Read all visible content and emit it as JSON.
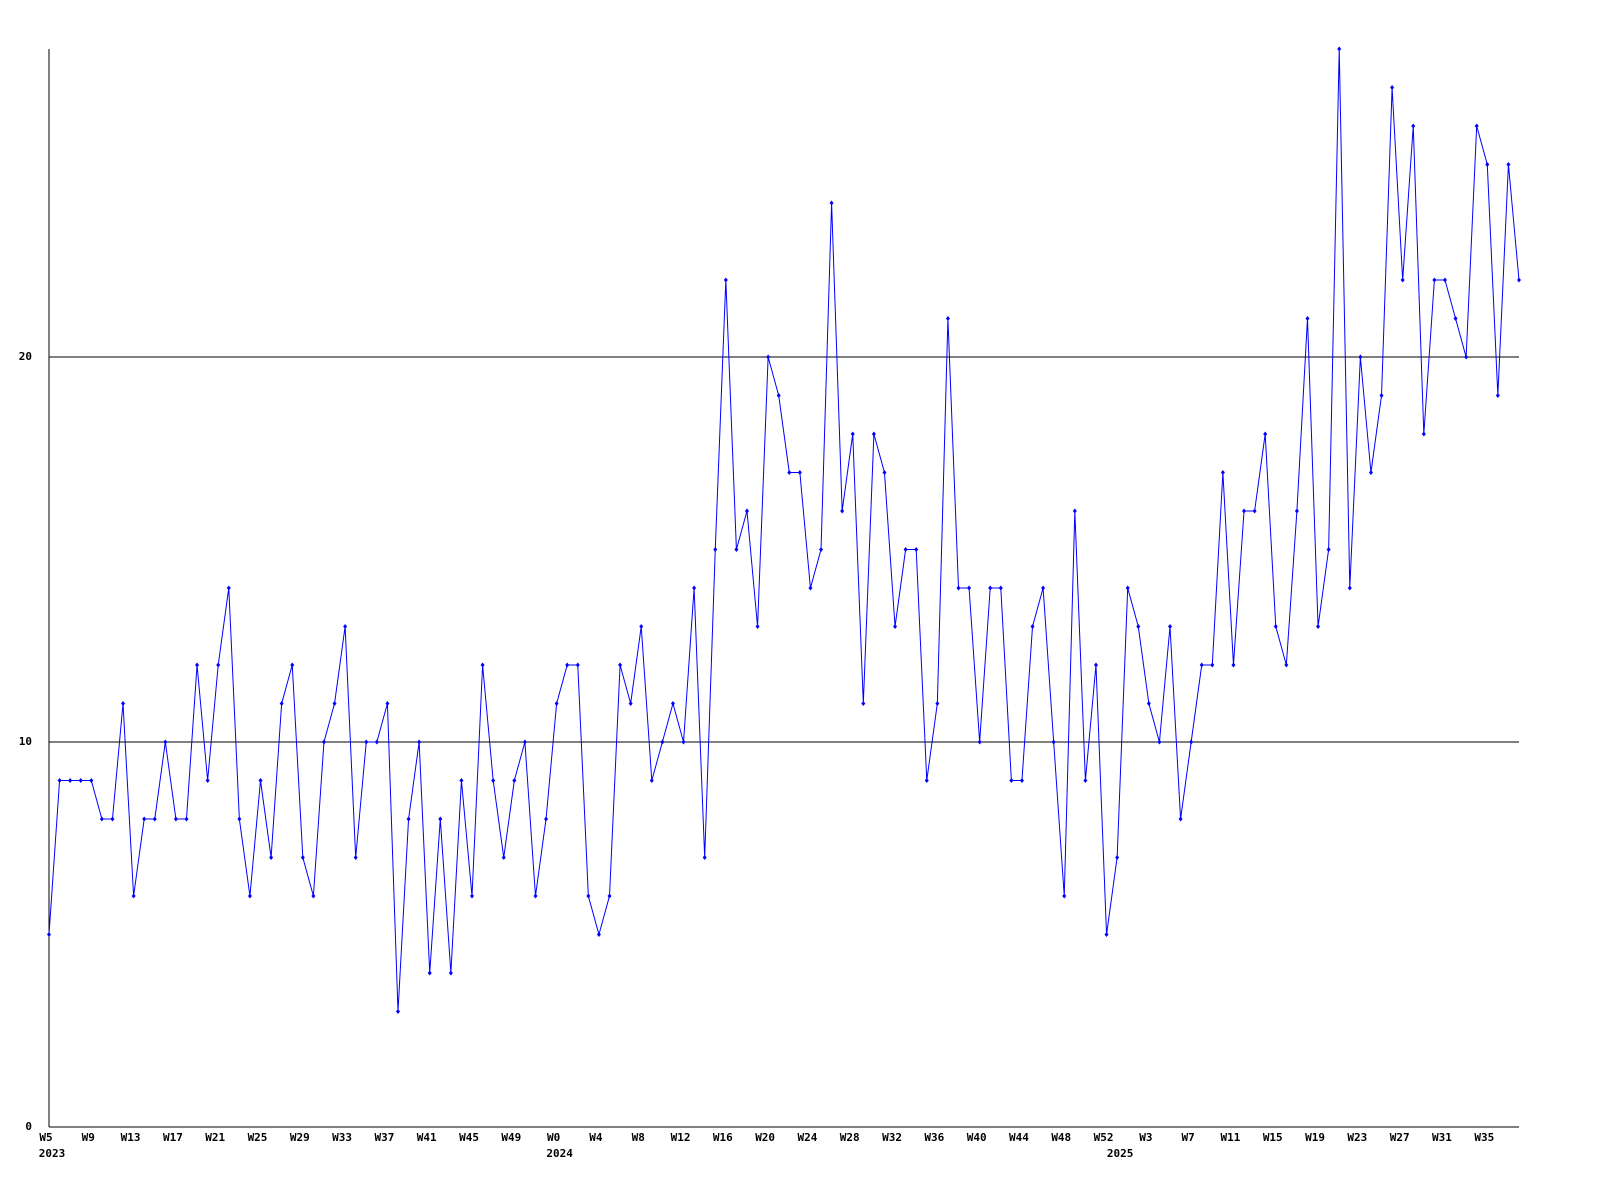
{
  "chart_data": {
    "type": "line",
    "categories": [
      "W5",
      null,
      null,
      null,
      "W9",
      null,
      null,
      null,
      "W13",
      null,
      null,
      null,
      "W17",
      null,
      null,
      null,
      "W21",
      null,
      null,
      null,
      "W25",
      null,
      null,
      null,
      "W29",
      null,
      null,
      null,
      "W33",
      null,
      null,
      null,
      "W37",
      null,
      null,
      null,
      "W41",
      null,
      null,
      null,
      "W45",
      null,
      null,
      null,
      "W49",
      null,
      null,
      null,
      "W0",
      null,
      null,
      null,
      "W4",
      null,
      null,
      null,
      "W8",
      null,
      null,
      null,
      "W12",
      null,
      null,
      null,
      "W16",
      null,
      null,
      null,
      "W20",
      null,
      null,
      null,
      "W24",
      null,
      null,
      null,
      "W28",
      null,
      null,
      null,
      "W32",
      null,
      null,
      null,
      "W36",
      null,
      null,
      null,
      "W40",
      null,
      null,
      null,
      "W44",
      null,
      null,
      null,
      "W48",
      null,
      null,
      null,
      "W52",
      null,
      null,
      null,
      "W3",
      null,
      null,
      null,
      "W7",
      null,
      null,
      null,
      "W11",
      null,
      null,
      null,
      "W15",
      null,
      null,
      null,
      "W19",
      null,
      null,
      null,
      "W23",
      null,
      null,
      null,
      "W27",
      null,
      null,
      null,
      "W31",
      null,
      null,
      null,
      "W35",
      null,
      null,
      null
    ],
    "year_labels": [
      "2023",
      null,
      null,
      null,
      null,
      null,
      null,
      null,
      null,
      null,
      null,
      null,
      null,
      null,
      null,
      null,
      null,
      null,
      null,
      null,
      null,
      null,
      null,
      null,
      null,
      null,
      null,
      null,
      null,
      null,
      null,
      null,
      null,
      null,
      null,
      null,
      null,
      null,
      null,
      null,
      null,
      null,
      null,
      null,
      null,
      null,
      null,
      null,
      "2024",
      null,
      null,
      null,
      null,
      null,
      null,
      null,
      null,
      null,
      null,
      null,
      null,
      null,
      null,
      null,
      null,
      null,
      null,
      null,
      null,
      null,
      null,
      null,
      null,
      null,
      null,
      null,
      null,
      null,
      null,
      null,
      null,
      null,
      null,
      null,
      null,
      null,
      null,
      null,
      null,
      null,
      null,
      null,
      null,
      null,
      null,
      null,
      null,
      null,
      null,
      null,
      null,
      "2025",
      null,
      null,
      null,
      null,
      null,
      null,
      null,
      null,
      null,
      null,
      null,
      null,
      null,
      null,
      null,
      null,
      null,
      null,
      null,
      null,
      null,
      null,
      null,
      null,
      null,
      null,
      null,
      null,
      null,
      null,
      null,
      null,
      null,
      null,
      null,
      null,
      null,
      null
    ],
    "series": [
      {
        "color": "#0000ff",
        "values": [
          5,
          9,
          9,
          9,
          9,
          8,
          8,
          11,
          6,
          8,
          8,
          10,
          8,
          8,
          12,
          9,
          12,
          14,
          8,
          6,
          9,
          7,
          11,
          12,
          7,
          6,
          10,
          11,
          13,
          7,
          10,
          10,
          11,
          3,
          8,
          10,
          4,
          8,
          4,
          9,
          6,
          12,
          9,
          7,
          9,
          10,
          6,
          8,
          11,
          12,
          12,
          6,
          5,
          6,
          12,
          11,
          13,
          9,
          10,
          11,
          10,
          14,
          7,
          15,
          22,
          15,
          16,
          13,
          20,
          19,
          17,
          17,
          14,
          15,
          24,
          16,
          18,
          11,
          18,
          17,
          13,
          15,
          15,
          9,
          11,
          21,
          14,
          14,
          10,
          14,
          14,
          9,
          9,
          13,
          14,
          10,
          6,
          16,
          9,
          12,
          5,
          7,
          14,
          13,
          11,
          10,
          13,
          8,
          10,
          12,
          12,
          17,
          12,
          16,
          16,
          18,
          13,
          12,
          16,
          21,
          13,
          15,
          28,
          14,
          20,
          17,
          19,
          27,
          22,
          26,
          18,
          22,
          22,
          21,
          20,
          26,
          25,
          19,
          25,
          22
        ]
      }
    ],
    "ylim": [
      0,
      28
    ],
    "yticks": [
      0,
      10,
      20
    ],
    "grid": true
  }
}
